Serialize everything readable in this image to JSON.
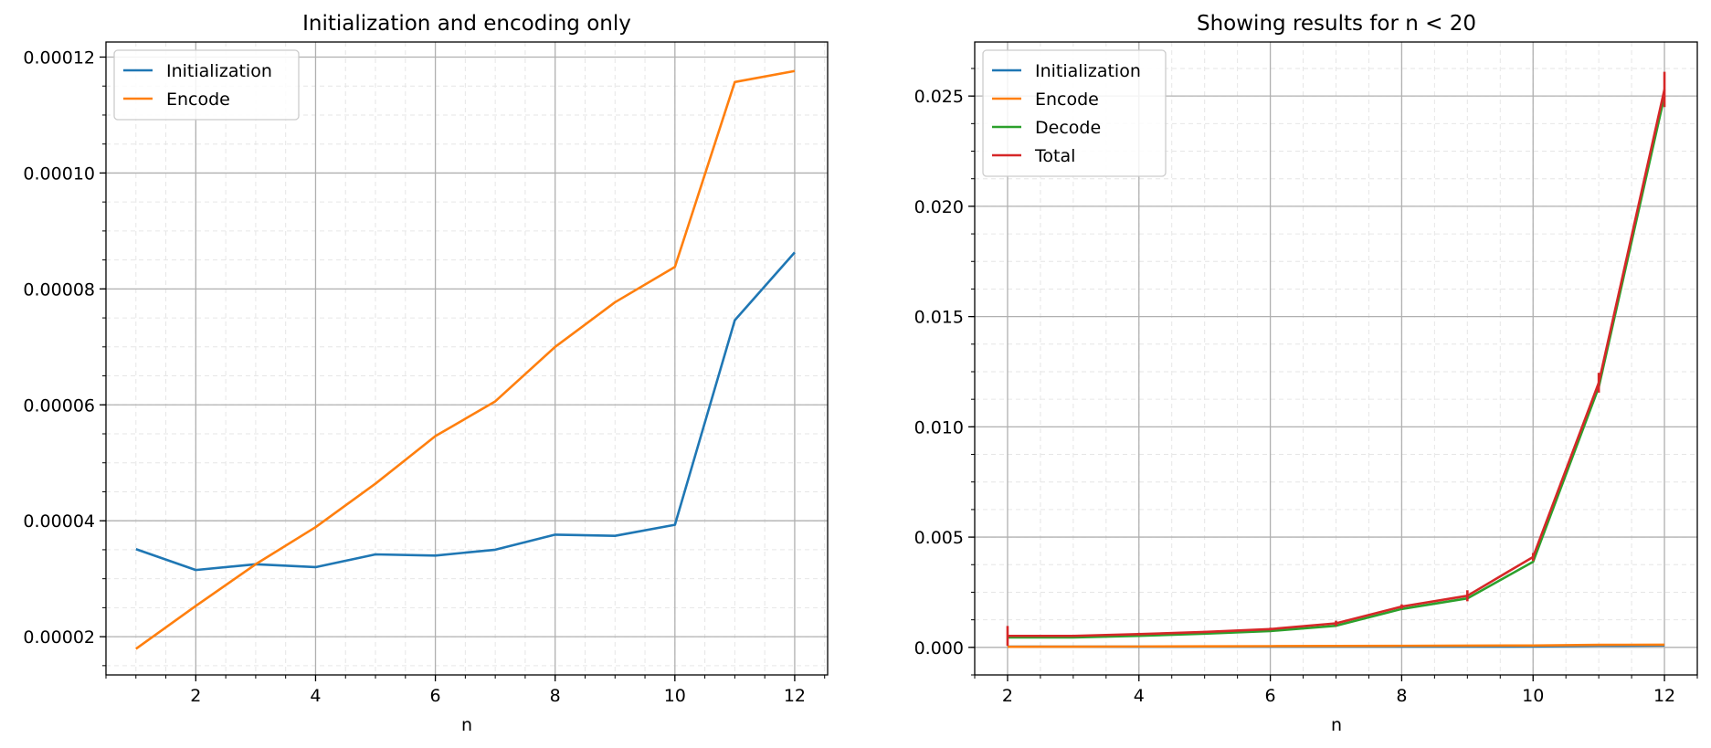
{
  "chart_data": [
    {
      "type": "line",
      "title": "Initialization and encoding only",
      "xlabel": "n",
      "ylabel": "",
      "xlim": [
        0.5,
        12.55
      ],
      "ylim": [
        1.34e-05,
        0.0001226
      ],
      "xticks": [
        2,
        4,
        6,
        8,
        10,
        12
      ],
      "xtick_labels": [
        "2",
        "4",
        "6",
        "8",
        "10",
        "12"
      ],
      "yticks": [
        2e-05,
        4e-05,
        6e-05,
        8e-05,
        0.0001,
        0.00012
      ],
      "ytick_labels": [
        "0.00002",
        "0.00004",
        "0.00006",
        "0.00008",
        "0.00010",
        "0.00012"
      ],
      "grid": true,
      "legend_position": "top-left",
      "x": [
        1,
        2,
        3,
        4,
        5,
        6,
        7,
        8,
        9,
        10,
        11,
        12
      ],
      "series": [
        {
          "name": "Initialization",
          "color": "#1f77b4",
          "values": [
            3.51e-05,
            3.15e-05,
            3.25e-05,
            3.2e-05,
            3.42e-05,
            3.4e-05,
            3.5e-05,
            3.76e-05,
            3.74e-05,
            3.93e-05,
            7.46e-05,
            8.63e-05
          ]
        },
        {
          "name": "Encode",
          "color": "#ff7f0e",
          "values": [
            1.79e-05,
            2.53e-05,
            3.25e-05,
            3.89e-05,
            4.64e-05,
            5.46e-05,
            6.06e-05,
            7e-05,
            7.77e-05,
            8.38e-05,
            0.0001157,
            0.0001176
          ]
        }
      ]
    },
    {
      "type": "line",
      "title": "Showing results for n < 20",
      "xlabel": "n",
      "ylabel": "",
      "xlim": [
        1.5,
        12.5
      ],
      "ylim": [
        -0.00125,
        0.02745
      ],
      "xticks": [
        2,
        4,
        6,
        8,
        10,
        12
      ],
      "xtick_labels": [
        "2",
        "4",
        "6",
        "8",
        "10",
        "12"
      ],
      "yticks": [
        0,
        0.005,
        0.01,
        0.015,
        0.02,
        0.025
      ],
      "ytick_labels": [
        "0.000",
        "0.005",
        "0.010",
        "0.015",
        "0.020",
        "0.025"
      ],
      "grid": true,
      "legend_position": "top-left",
      "x": [
        2,
        3,
        4,
        5,
        6,
        7,
        8,
        9,
        10,
        11,
        12
      ],
      "series": [
        {
          "name": "Initialization",
          "color": "#1f77b4",
          "values": [
            3.1e-05,
            3.2e-05,
            3.2e-05,
            3.4e-05,
            3.4e-05,
            3.5e-05,
            3.8e-05,
            3.7e-05,
            3.9e-05,
            7.5e-05,
            8.6e-05
          ]
        },
        {
          "name": "Encode",
          "color": "#ff7f0e",
          "values": [
            2.5e-05,
            3.3e-05,
            3.9e-05,
            4.6e-05,
            5.5e-05,
            6.1e-05,
            7e-05,
            7.8e-05,
            8.4e-05,
            0.000116,
            0.000118
          ]
        },
        {
          "name": "Decode",
          "color": "#2ca02c",
          "values": [
            0.00045,
            0.00045,
            0.00052,
            0.00062,
            0.00074,
            0.00098,
            0.00174,
            0.00222,
            0.00388,
            0.0118,
            0.025
          ]
        },
        {
          "name": "Total",
          "color": "#d62728",
          "values": [
            0.00052,
            0.00052,
            0.0006,
            0.0007,
            0.00083,
            0.00109,
            0.00185,
            0.00234,
            0.0041,
            0.012,
            0.0253
          ],
          "errors": [
            0.00045,
            5e-05,
            6e-05,
            5e-05,
            6e-05,
            0.00012,
            0.0001,
            0.00025,
            0.00018,
            0.00045,
            0.0008
          ]
        }
      ]
    }
  ]
}
